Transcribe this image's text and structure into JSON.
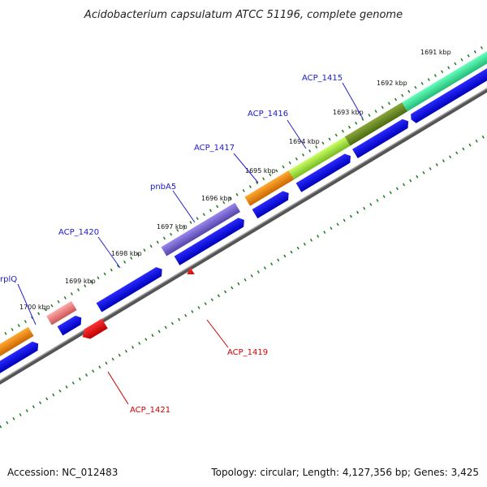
{
  "title": "Acidobacterium capsulatum ATCC 51196, complete genome",
  "footer": {
    "accession": "Accession: NC_012483",
    "topology": "Topology: circular; Length: 4,127,356 bp; Genes: 3,425"
  },
  "ticks": [
    "1691 kbp",
    "1692 kbp",
    "1693 kbp",
    "1694 kbp",
    "1695 kbp",
    "1696 kbp",
    "1697 kbp",
    "1698 kbp",
    "1699 kbp",
    "1700 kbp"
  ],
  "gene_labels_blue": [
    "ACP_1415",
    "ACP_1416",
    "ACP_1417",
    "pnbA5",
    "ACP_1420",
    "rplQ"
  ],
  "gene_labels_red": [
    "ACP_1419",
    "ACP_1421"
  ],
  "colors": {
    "forward_cds": "#0000ee",
    "reverse_cds": "#ee0000",
    "backbone": "#777777",
    "tick_dots": "#227722",
    "cog_green_light": "#33dd88",
    "cog_olive": "#668822",
    "cog_lime": "#99dd33",
    "cog_orange": "#ee8800",
    "cog_purple": "#7766cc",
    "cog_pink": "#ee8888"
  }
}
